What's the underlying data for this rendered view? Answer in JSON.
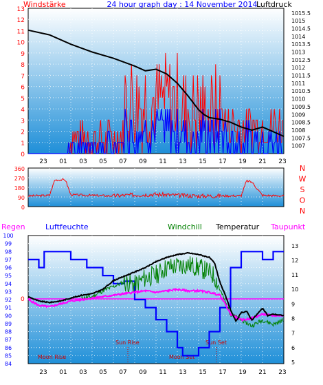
{
  "colors": {
    "red": "#ff0000",
    "blue": "#0000ff",
    "black": "#000000",
    "green": "#008000",
    "magenta": "#ff00ff",
    "darkred": "#cc0000",
    "grad_top": "#ffffff",
    "grad_bottom": "#1f8fd8"
  },
  "chart_data": [
    {
      "type": "line",
      "title": "24 hour graph day : 14 November 2014",
      "series_labels": {
        "wind": "Windstärke",
        "pressure": "Luftdruck"
      },
      "y_left_ticks": [
        "13",
        "12",
        "11",
        "10",
        "9",
        "8",
        "7",
        "6",
        "5",
        "4",
        "3",
        "2",
        "1",
        "0"
      ],
      "y_right_ticks": [
        "1015.5",
        "1015",
        "1014.5",
        "1014",
        "1013.5",
        "1013",
        "1012.5",
        "1012",
        "1011.5",
        "1011",
        "1010.5",
        "1010",
        "1009.5",
        "1009",
        "1008.5",
        "1008",
        "1007.5",
        "1007"
      ],
      "x_ticks": [
        "23",
        "01",
        "03",
        "05",
        "07",
        "09",
        "11",
        "13",
        "15",
        "17",
        "19",
        "21",
        "23"
      ],
      "ylim_left": [
        0,
        13
      ],
      "ylim_right": [
        1006.5,
        1015.8
      ],
      "pressure": [
        [
          0,
          1014.4
        ],
        [
          2,
          1014.1
        ],
        [
          4,
          1013.5
        ],
        [
          6,
          1013.0
        ],
        [
          8,
          1012.6
        ],
        [
          10,
          1012.1
        ],
        [
          11,
          1011.8
        ],
        [
          12,
          1011.9
        ],
        [
          13,
          1011.6
        ],
        [
          14,
          1011.0
        ],
        [
          15,
          1010.2
        ],
        [
          16,
          1009.3
        ],
        [
          16.5,
          1009.0
        ],
        [
          17,
          1008.8
        ],
        [
          18,
          1008.7
        ],
        [
          19,
          1008.5
        ],
        [
          20,
          1008.2
        ],
        [
          21,
          1008.0
        ],
        [
          22,
          1008.2
        ],
        [
          23,
          1007.9
        ],
        [
          24,
          1007.6
        ]
      ]
    },
    {
      "type": "line",
      "title": "",
      "series_labels": {
        "direction": ""
      },
      "y_ticks": [
        "360",
        "270",
        "180",
        "90",
        "0"
      ],
      "compass": [
        "N",
        "W",
        "S",
        "O",
        "N"
      ],
      "ylim": [
        0,
        360
      ],
      "direction": [
        [
          0,
          100
        ],
        [
          1,
          102
        ],
        [
          2,
          105
        ],
        [
          2.5,
          250
        ],
        [
          3.5,
          250
        ],
        [
          4,
          110
        ],
        [
          6,
          105
        ],
        [
          8,
          100
        ],
        [
          10,
          110
        ],
        [
          12,
          115
        ],
        [
          14,
          105
        ],
        [
          16,
          100
        ],
        [
          18,
          100
        ],
        [
          20,
          102
        ],
        [
          20.5,
          240
        ],
        [
          21,
          230
        ],
        [
          22,
          105
        ],
        [
          24,
          100
        ]
      ]
    },
    {
      "type": "line",
      "title": "",
      "series_labels": {
        "rain": "Regen",
        "humidity": "Luftfeuchte",
        "windchill": "Windchill",
        "temperature": "Temperatur",
        "dewpoint": "Taupunkt"
      },
      "y_left_ticks": [
        "100",
        "99",
        "98",
        "97",
        "96",
        "95",
        "94",
        "93",
        "92",
        "91",
        "90",
        "89",
        "88",
        "87",
        "86",
        "85",
        "84"
      ],
      "y_right_ticks": [
        "13",
        "12",
        "11",
        "10",
        "9",
        "8",
        "7",
        "6",
        "5"
      ],
      "rain_zero_label": "0",
      "x_ticks": [
        "23",
        "01",
        "03",
        "05",
        "07",
        "09",
        "11",
        "13",
        "15",
        "17",
        "19",
        "21",
        "23"
      ],
      "ylim_humidity": [
        84,
        100
      ],
      "ylim_temperature": [
        4.9,
        13.7
      ],
      "markers": {
        "moon_rise": "Moon Rise",
        "sun_rise": "Sun Rise",
        "moon_set": "Moon Set",
        "sun_set": "Sun Set"
      },
      "humidity": [
        [
          0,
          97
        ],
        [
          1,
          96
        ],
        [
          1.5,
          98
        ],
        [
          4,
          97
        ],
        [
          5.5,
          96
        ],
        [
          7,
          95
        ],
        [
          8,
          94
        ],
        [
          9,
          94.3
        ],
        [
          10,
          92
        ],
        [
          11,
          91
        ],
        [
          12,
          89.5
        ],
        [
          13,
          88
        ],
        [
          14,
          86
        ],
        [
          14.5,
          85
        ],
        [
          15,
          85
        ],
        [
          16,
          86
        ],
        [
          17,
          88
        ],
        [
          18,
          91
        ],
        [
          19,
          96
        ],
        [
          20,
          98
        ],
        [
          21,
          98
        ],
        [
          22,
          97
        ],
        [
          23,
          98
        ],
        [
          24,
          98
        ]
      ],
      "temperature": [
        [
          0,
          9.5
        ],
        [
          1,
          9.2
        ],
        [
          2,
          9.1
        ],
        [
          3,
          9.2
        ],
        [
          4,
          9.4
        ],
        [
          5,
          9.6
        ],
        [
          6,
          9.7
        ],
        [
          7,
          10.0
        ],
        [
          8,
          10.6
        ],
        [
          9,
          10.9
        ],
        [
          10,
          11.2
        ],
        [
          11,
          11.5
        ],
        [
          12,
          11.9
        ],
        [
          13,
          12.2
        ],
        [
          14,
          12.4
        ],
        [
          15,
          12.5
        ],
        [
          16,
          12.4
        ],
        [
          17,
          12.2
        ],
        [
          17.5,
          11.8
        ],
        [
          18,
          10.5
        ],
        [
          18.5,
          9.6
        ],
        [
          19,
          8.6
        ],
        [
          19.5,
          7.8
        ],
        [
          20,
          8.4
        ],
        [
          20.5,
          8.5
        ],
        [
          21,
          7.9
        ],
        [
          22,
          8.7
        ],
        [
          22.5,
          8.2
        ],
        [
          23,
          8.3
        ],
        [
          24,
          8.2
        ]
      ],
      "windchill": [
        [
          5,
          9.4
        ],
        [
          6,
          9.5
        ],
        [
          7,
          9.9
        ],
        [
          8,
          10.2
        ],
        [
          9,
          10.5
        ],
        [
          10,
          10.3
        ],
        [
          11,
          10.8
        ],
        [
          12,
          11.0
        ],
        [
          13,
          11.5
        ],
        [
          14,
          11.6
        ],
        [
          15,
          11.7
        ],
        [
          16,
          11.5
        ],
        [
          17,
          11.2
        ],
        [
          17.5,
          10.9
        ],
        [
          18,
          10.0
        ],
        [
          19,
          8.3
        ],
        [
          20,
          7.9
        ],
        [
          21,
          7.5
        ],
        [
          22,
          7.9
        ],
        [
          23,
          7.6
        ],
        [
          24,
          7.9
        ]
      ],
      "dewpoint": [
        [
          0,
          9.3
        ],
        [
          1,
          8.9
        ],
        [
          2,
          8.8
        ],
        [
          3,
          9.0
        ],
        [
          4,
          9.2
        ],
        [
          5,
          9.3
        ],
        [
          6,
          9.4
        ],
        [
          7,
          9.5
        ],
        [
          8,
          9.6
        ],
        [
          9,
          9.7
        ],
        [
          10,
          9.8
        ],
        [
          11,
          9.9
        ],
        [
          12,
          9.8
        ],
        [
          13,
          9.9
        ],
        [
          14,
          10.0
        ],
        [
          15,
          9.9
        ],
        [
          16,
          9.9
        ],
        [
          17,
          9.8
        ],
        [
          18,
          9.6
        ],
        [
          18.5,
          9.0
        ],
        [
          19,
          8.3
        ],
        [
          20,
          7.9
        ],
        [
          21,
          8.0
        ],
        [
          22,
          8.3
        ],
        [
          23,
          8.2
        ],
        [
          24,
          8.2
        ]
      ]
    }
  ]
}
